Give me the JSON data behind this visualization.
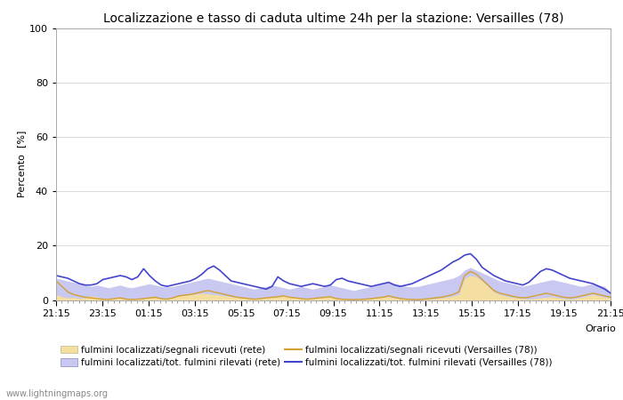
{
  "title": "Localizzazione e tasso di caduta ultime 24h per la stazione: Versailles (78)",
  "ylabel": "Percento  [%]",
  "xlabel": "Orario",
  "ylim": [
    0,
    100
  ],
  "yticks": [
    0,
    20,
    40,
    60,
    80,
    100
  ],
  "xtick_labels": [
    "21:15",
    "23:15",
    "01:15",
    "03:15",
    "05:15",
    "07:15",
    "09:15",
    "11:15",
    "13:15",
    "15:15",
    "17:15",
    "19:15",
    "21:15"
  ],
  "watermark": "www.lightningmaps.org",
  "color_fill_seg": "#f5dfa0",
  "color_fill_tot": "#c8c8f0",
  "color_line_seg": "#d4a030",
  "color_line_tot": "#4444cc",
  "bg_color": "#ffffff",
  "grid_color": "#cccccc",
  "title_fontsize": 10,
  "tick_fontsize": 8,
  "label_fontsize": 8,
  "legend_labels": [
    "fulmini localizzati/segnali ricevuti (rete)",
    "fulmini localizzati/segnali ricevuti (Versailles (78))",
    "fulmini localizzati/tot. fulmini rilevati (rete)",
    "fulmini localizzati/tot. fulmini rilevati (Versailles (78))"
  ],
  "fill_rete_seg": [
    2.0,
    1.2,
    0.8,
    1.0,
    0.5,
    0.8,
    1.5,
    1.2,
    0.3,
    0.2,
    0.5,
    0.8,
    0.2,
    0.1,
    0.3,
    0.5,
    0.8,
    1.0,
    0.5,
    0.3,
    0.8,
    1.5,
    1.8,
    2.0,
    2.2,
    2.5,
    2.3,
    2.0,
    1.8,
    1.5,
    1.2,
    1.0,
    0.8,
    0.5,
    0.3,
    0.5,
    0.8,
    1.0,
    1.2,
    1.5,
    1.0,
    0.8,
    0.5,
    0.3,
    0.5,
    0.8,
    1.0,
    1.2,
    0.5,
    0.3,
    0.2,
    0.1,
    0.2,
    0.3,
    0.5,
    0.8,
    1.0,
    1.2,
    0.8,
    0.5,
    0.3,
    0.2,
    0.1,
    0.2,
    0.3,
    0.5,
    0.8,
    1.0,
    1.5,
    2.0,
    8.0,
    9.0,
    8.5,
    7.0,
    5.0,
    3.0,
    2.0,
    1.5,
    1.0,
    0.8,
    0.5,
    0.3,
    0.5,
    0.8,
    1.0,
    1.2,
    0.8,
    0.5,
    0.3,
    0.5,
    1.0,
    1.5,
    2.0,
    1.5,
    1.0,
    0.8
  ],
  "fill_rete_tot": [
    8.0,
    7.5,
    7.0,
    6.5,
    6.0,
    5.5,
    5.0,
    5.5,
    5.0,
    4.5,
    5.0,
    5.5,
    4.8,
    4.5,
    5.0,
    5.5,
    6.0,
    5.5,
    5.0,
    4.8,
    5.0,
    5.5,
    6.0,
    6.5,
    7.0,
    7.5,
    8.0,
    7.5,
    7.0,
    6.5,
    6.0,
    5.5,
    5.0,
    4.5,
    4.0,
    4.5,
    5.0,
    5.5,
    5.0,
    4.5,
    4.0,
    4.5,
    5.0,
    4.5,
    4.0,
    4.5,
    5.0,
    5.5,
    5.0,
    4.5,
    4.0,
    3.5,
    4.0,
    4.5,
    5.0,
    5.5,
    6.0,
    6.5,
    6.0,
    5.5,
    5.0,
    4.8,
    5.0,
    5.5,
    6.0,
    6.5,
    7.0,
    7.5,
    8.0,
    9.0,
    11.0,
    12.0,
    11.0,
    10.0,
    9.0,
    8.0,
    7.0,
    6.5,
    6.0,
    5.5,
    5.0,
    5.5,
    6.0,
    6.5,
    7.0,
    7.5,
    7.0,
    6.5,
    6.0,
    5.5,
    5.0,
    5.5,
    6.0,
    5.5,
    5.0,
    3.0
  ],
  "line_versailles_seg": [
    7.0,
    5.0,
    3.0,
    2.0,
    1.5,
    1.0,
    0.8,
    0.5,
    0.3,
    0.2,
    0.5,
    0.8,
    0.3,
    0.2,
    0.3,
    0.5,
    0.8,
    1.0,
    0.5,
    0.3,
    0.8,
    1.5,
    1.8,
    2.0,
    2.5,
    3.0,
    3.5,
    3.0,
    2.5,
    2.0,
    1.5,
    1.0,
    0.8,
    0.5,
    0.3,
    0.5,
    0.8,
    1.0,
    1.2,
    1.5,
    1.0,
    0.8,
    0.5,
    0.3,
    0.5,
    0.8,
    1.0,
    1.2,
    0.5,
    0.3,
    0.2,
    0.1,
    0.2,
    0.3,
    0.5,
    0.8,
    1.0,
    1.5,
    1.0,
    0.5,
    0.3,
    0.2,
    0.1,
    0.3,
    0.5,
    0.8,
    1.0,
    1.5,
    2.0,
    3.0,
    9.0,
    10.5,
    9.5,
    7.5,
    5.5,
    3.5,
    2.5,
    2.0,
    1.5,
    1.0,
    0.8,
    1.0,
    1.5,
    2.0,
    2.5,
    2.0,
    1.5,
    1.0,
    0.8,
    1.0,
    1.5,
    2.0,
    2.5,
    2.0,
    1.5,
    1.0
  ],
  "line_versailles_tot": [
    9.0,
    8.5,
    8.0,
    7.0,
    6.0,
    5.5,
    5.5,
    6.0,
    7.5,
    8.0,
    8.5,
    9.0,
    8.5,
    7.5,
    8.5,
    11.5,
    9.0,
    7.0,
    5.5,
    5.0,
    5.5,
    6.0,
    6.5,
    7.0,
    8.0,
    9.5,
    11.5,
    12.5,
    11.0,
    9.0,
    7.0,
    6.5,
    6.0,
    5.5,
    5.0,
    4.5,
    4.0,
    5.0,
    8.5,
    7.0,
    6.0,
    5.5,
    5.0,
    5.5,
    6.0,
    5.5,
    5.0,
    5.5,
    7.5,
    8.0,
    7.0,
    6.5,
    6.0,
    5.5,
    5.0,
    5.5,
    6.0,
    6.5,
    5.5,
    5.0,
    5.5,
    6.0,
    7.0,
    8.0,
    9.0,
    10.0,
    11.0,
    12.5,
    14.0,
    15.0,
    16.5,
    17.0,
    15.0,
    12.0,
    10.5,
    9.0,
    8.0,
    7.0,
    6.5,
    6.0,
    5.5,
    6.5,
    8.5,
    10.5,
    11.5,
    11.0,
    10.0,
    9.0,
    8.0,
    7.5,
    7.0,
    6.5,
    6.0,
    5.0,
    4.0,
    2.5
  ]
}
